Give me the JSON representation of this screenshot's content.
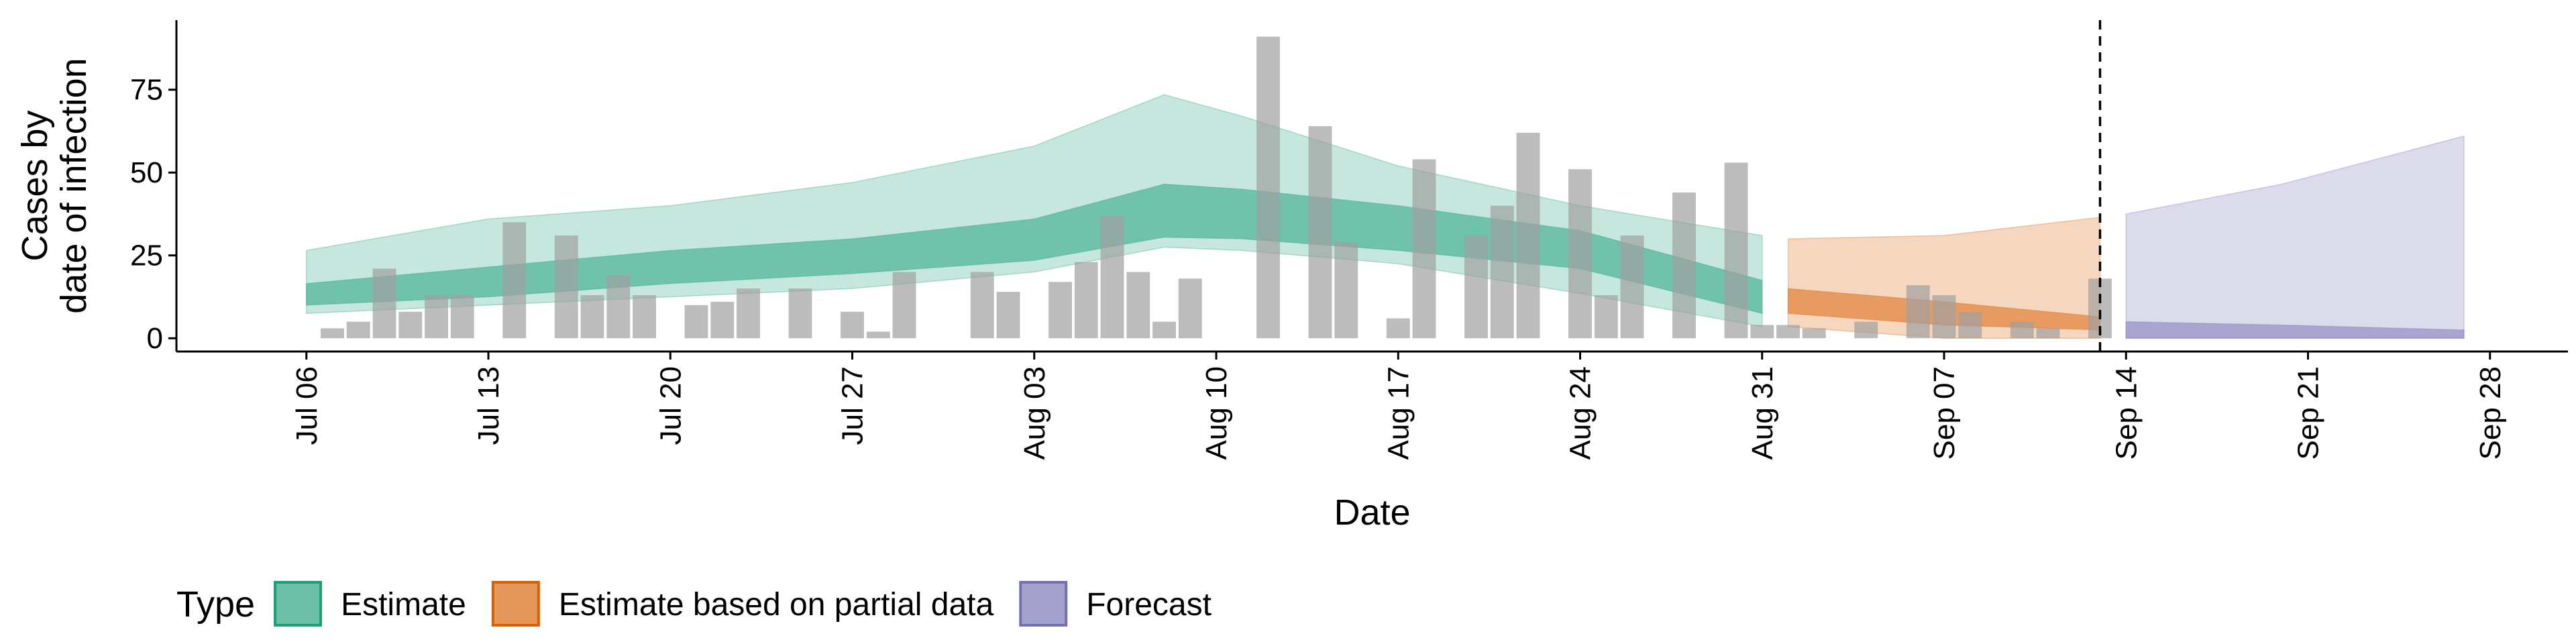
{
  "chart_data": {
    "type": "ribbon",
    "xlabel": "Date",
    "ylabel": [
      "Cases by",
      "date of infection"
    ],
    "legend_title": "Type",
    "legend_position": "bottom",
    "xlim": [
      "Jul 01",
      "Oct 01"
    ],
    "xticks": [
      "Jul 06",
      "Jul 13",
      "Jul 20",
      "Jul 27",
      "Aug 03",
      "Aug 10",
      "Aug 17",
      "Aug 24",
      "Aug 31",
      "Sep 07",
      "Sep 14",
      "Sep 21",
      "Sep 28"
    ],
    "ylim": [
      -4,
      96
    ],
    "yticks": [
      0,
      25,
      50,
      75
    ],
    "vline": "Sep 13",
    "observed": {
      "color": "#a0a0a0",
      "x": [
        "Jul 07",
        "Jul 08",
        "Jul 09",
        "Jul 10",
        "Jul 11",
        "Jul 12",
        "Jul 14",
        "Jul 16",
        "Jul 17",
        "Jul 18",
        "Jul 19",
        "Jul 21",
        "Jul 22",
        "Jul 23",
        "Jul 25",
        "Jul 27",
        "Jul 28",
        "Jul 29",
        "Aug 01",
        "Aug 02",
        "Aug 04",
        "Aug 05",
        "Aug 06",
        "Aug 07",
        "Aug 08",
        "Aug 09",
        "Aug 12",
        "Aug 14",
        "Aug 15",
        "Aug 17",
        "Aug 18",
        "Aug 20",
        "Aug 21",
        "Aug 22",
        "Aug 24",
        "Aug 25",
        "Aug 26",
        "Aug 28",
        "Aug 30",
        "Aug 31",
        "Sep 01",
        "Sep 02",
        "Sep 04",
        "Sep 06",
        "Sep 07",
        "Sep 08",
        "Sep 10",
        "Sep 11",
        "Sep 13"
      ],
      "values": [
        3,
        5,
        21,
        8,
        13,
        13,
        35,
        31,
        13,
        19,
        13,
        10,
        11,
        15,
        15,
        8,
        2,
        20,
        20,
        14,
        17,
        23,
        37,
        20,
        5,
        18,
        91,
        64,
        29,
        6,
        54,
        31,
        40,
        62,
        51,
        13,
        31,
        44,
        53,
        4,
        4,
        3,
        5,
        16,
        13,
        8,
        5,
        3,
        18
      ]
    },
    "series": [
      {
        "name": "Estimate",
        "color": "#1b9e77",
        "x": [
          "Jul 06",
          "Jul 13",
          "Jul 20",
          "Jul 27",
          "Aug 03",
          "Aug 08",
          "Aug 11",
          "Aug 17",
          "Aug 24",
          "Aug 31"
        ],
        "upper90": [
          26.5,
          36,
          40,
          47,
          58,
          73.5,
          67,
          52,
          40,
          31
        ],
        "lower90": [
          7.5,
          10,
          12.5,
          15,
          20,
          27.5,
          26.5,
          22.5,
          13.5,
          3.5
        ],
        "upper50": [
          16.5,
          21.5,
          26.5,
          30,
          36,
          46.5,
          45,
          40,
          32.5,
          17.5
        ],
        "lower50": [
          10,
          12.5,
          16.5,
          19.5,
          23.5,
          30.5,
          30,
          26.5,
          21,
          7.5
        ]
      },
      {
        "name": "Estimate based on partial data",
        "color": "#d95f02",
        "x": [
          "Sep 01",
          "Sep 07",
          "Sep 13"
        ],
        "upper90": [
          30,
          31,
          36.5
        ],
        "lower90": [
          3.5,
          0,
          0
        ],
        "upper50": [
          15,
          11,
          6.5
        ],
        "lower50": [
          7.5,
          4,
          2.5
        ]
      },
      {
        "name": "Forecast",
        "color": "#7570b3",
        "x": [
          "Sep 14",
          "Sep 20",
          "Sep 27"
        ],
        "upper90": [
          37.5,
          46.5,
          61
        ],
        "lower90": [
          0,
          0,
          0
        ],
        "upper50": [
          5,
          4,
          2.5
        ],
        "lower50": [
          0,
          0,
          0
        ]
      }
    ]
  }
}
